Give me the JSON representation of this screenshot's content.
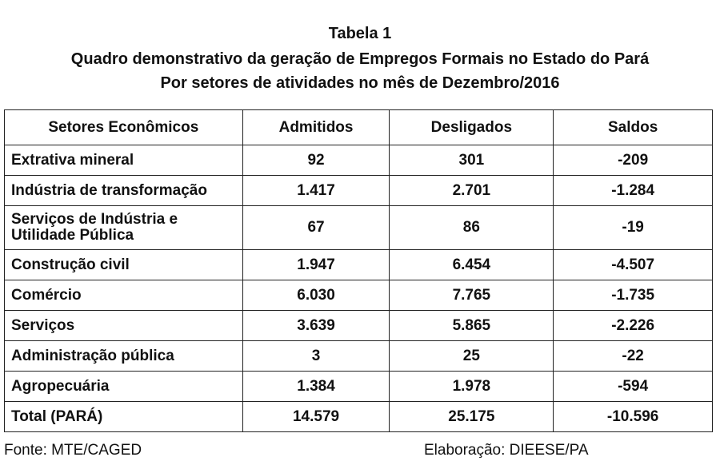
{
  "title": {
    "line1": "Tabela 1",
    "line2": "Quadro demonstrativo da geração de Empregos Formais no Estado do Pará",
    "line3": "Por setores de atividades no mês de Dezembro/2016"
  },
  "table": {
    "headers": [
      "Setores Econômicos",
      "Admitidos",
      "Desligados",
      "Saldos"
    ],
    "rows": [
      {
        "sector": "Extrativa mineral",
        "admitidos": "92",
        "desligados": "301",
        "saldos": "-209"
      },
      {
        "sector": "Indústria de transformação",
        "admitidos": "1.417",
        "desligados": "2.701",
        "saldos": "-1.284"
      },
      {
        "sector": "Serviços de Indústria e Utilidade Pública",
        "admitidos": "67",
        "desligados": "86",
        "saldos": "-19"
      },
      {
        "sector": "Construção civil",
        "admitidos": "1.947",
        "desligados": "6.454",
        "saldos": "-4.507"
      },
      {
        "sector": "Comércio",
        "admitidos": "6.030",
        "desligados": "7.765",
        "saldos": "-1.735"
      },
      {
        "sector": "Serviços",
        "admitidos": "3.639",
        "desligados": "5.865",
        "saldos": "-2.226"
      },
      {
        "sector": "Administração pública",
        "admitidos": "3",
        "desligados": "25",
        "saldos": "-22"
      },
      {
        "sector": "Agropecuária",
        "admitidos": "1.384",
        "desligados": "1.978",
        "saldos": "-594"
      },
      {
        "sector": "Total (PARÁ)",
        "admitidos": "14.579",
        "desligados": "25.175",
        "saldos": "-10.596"
      }
    ]
  },
  "footer": {
    "source": "Fonte: MTE/CAGED",
    "elaboration": "Elaboração: DIEESE/PA"
  }
}
